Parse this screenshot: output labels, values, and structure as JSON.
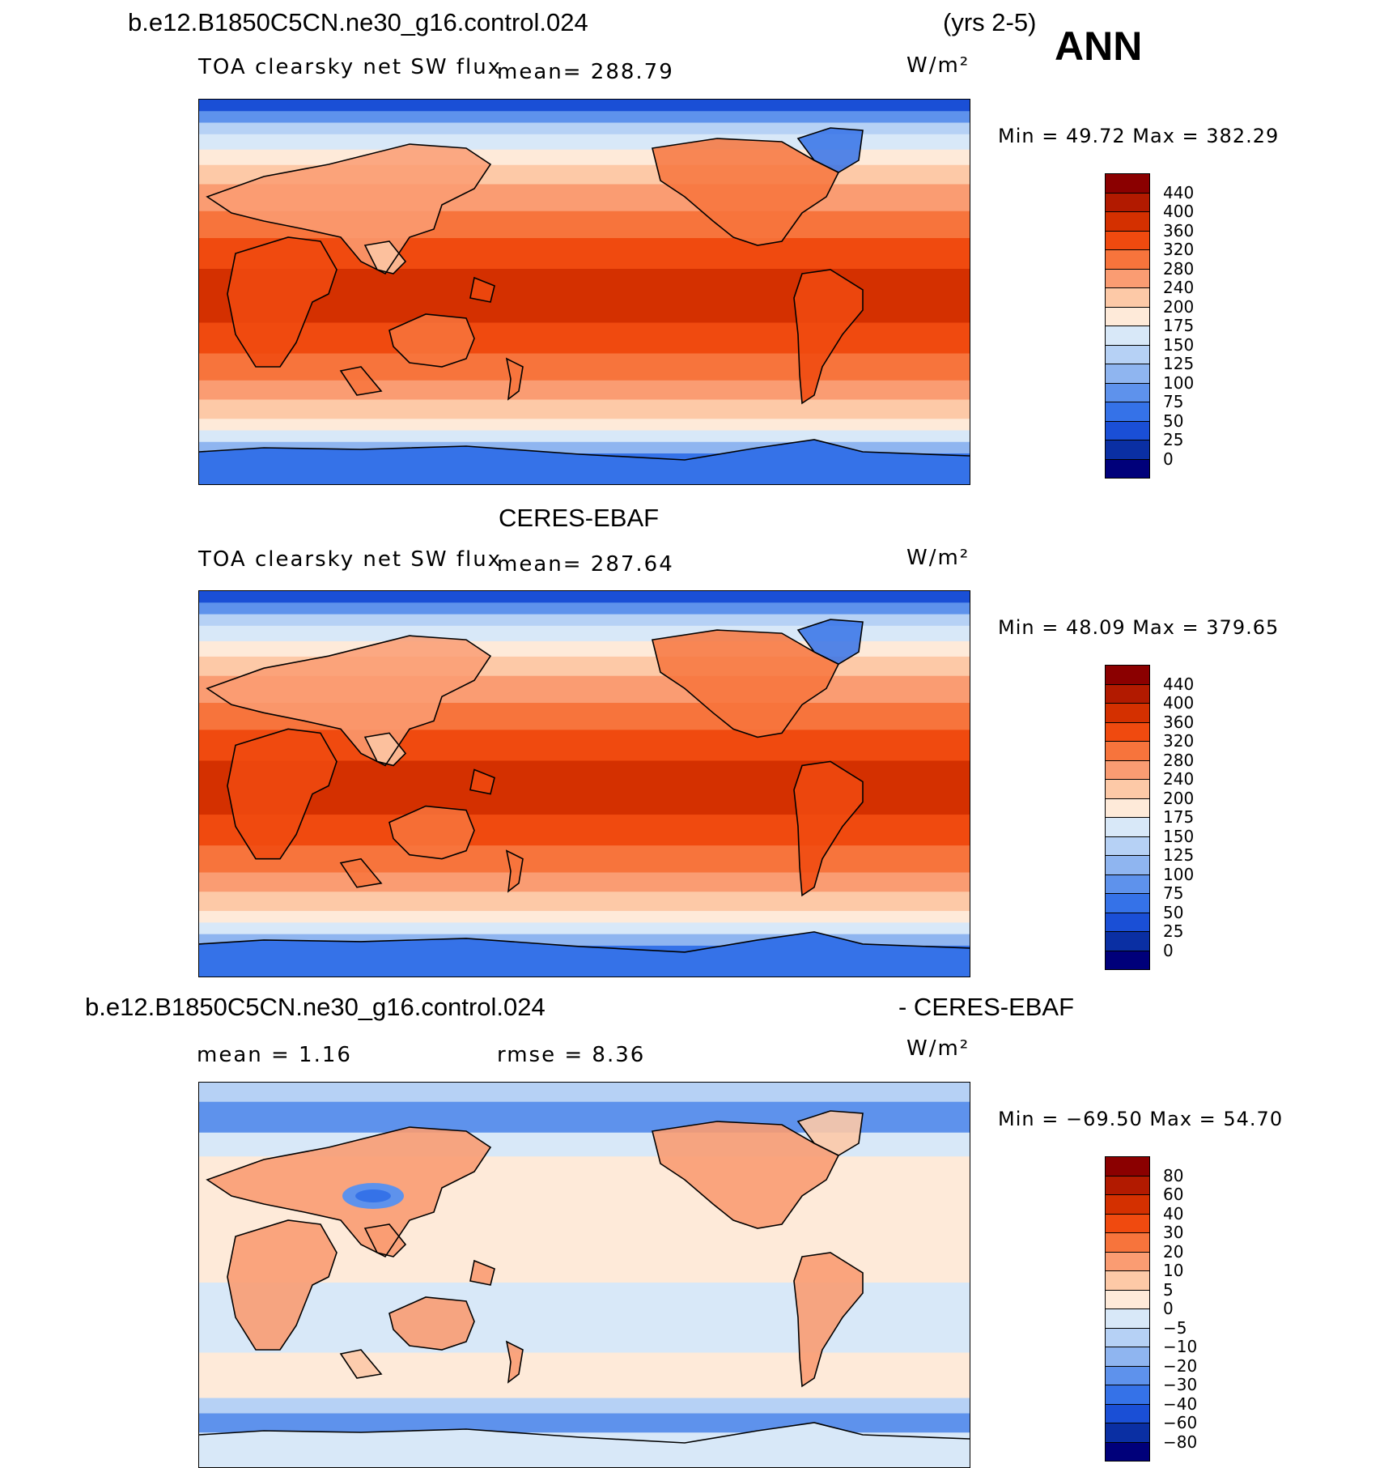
{
  "header": {
    "case_name": "b.e12.B1850C5CN.ne30_g16.control.024",
    "years": "(yrs 2-5)",
    "season": "ANN"
  },
  "panels": [
    {
      "title": "",
      "variable": "TOA clearsky net SW flux",
      "mean_text": "mean= 288.79",
      "units": "W/m²",
      "minmax_text": "Min =   49.72  Max = 382.29",
      "colorbar": {
        "levels": [
          "440",
          "400",
          "360",
          "320",
          "280",
          "240",
          "200",
          "175",
          "150",
          "125",
          "100",
          "75",
          "50",
          "25",
          "0"
        ],
        "colors": [
          "#8b0000",
          "#b21a00",
          "#d43000",
          "#f04a0f",
          "#f7743c",
          "#fa9c72",
          "#fdc9a7",
          "#feead9",
          "#d8e8f8",
          "#b6d1f5",
          "#8fb5f0",
          "#5e92ec",
          "#3572e8",
          "#1a4fd6",
          "#0a2fa3",
          "#00007a"
        ]
      }
    },
    {
      "title": "CERES-EBAF",
      "variable": "TOA clearsky net SW flux",
      "mean_text": "mean= 287.64",
      "units": "W/m²",
      "minmax_text": "Min =   48.09  Max = 379.65",
      "colorbar": {
        "levels": [
          "440",
          "400",
          "360",
          "320",
          "280",
          "240",
          "200",
          "175",
          "150",
          "125",
          "100",
          "75",
          "50",
          "25",
          "0"
        ],
        "colors": [
          "#8b0000",
          "#b21a00",
          "#d43000",
          "#f04a0f",
          "#f7743c",
          "#fa9c72",
          "#fdc9a7",
          "#feead9",
          "#d8e8f8",
          "#b6d1f5",
          "#8fb5f0",
          "#5e92ec",
          "#3572e8",
          "#1a4fd6",
          "#0a2fa3",
          "#00007a"
        ]
      }
    },
    {
      "title_left": "b.e12.B1850C5CN.ne30_g16.control.024",
      "title_right": "- CERES-EBAF",
      "mean_text": "mean =     1.16",
      "rmse_text": "rmse =     8.36",
      "units": "W/m²",
      "minmax_text": "Min = −69.50  Max =   54.70",
      "colorbar": {
        "levels": [
          "80",
          "60",
          "40",
          "30",
          "20",
          "10",
          "5",
          "0",
          "−5",
          "−10",
          "−20",
          "−30",
          "−40",
          "−60",
          "−80"
        ],
        "colors": [
          "#8b0000",
          "#b21a00",
          "#d43000",
          "#f04a0f",
          "#f7743c",
          "#fa9c72",
          "#fdc9a7",
          "#feead9",
          "#d8e8f8",
          "#b6d1f5",
          "#8fb5f0",
          "#5e92ec",
          "#3572e8",
          "#1a4fd6",
          "#0a2fa3",
          "#00007a"
        ]
      }
    }
  ]
}
